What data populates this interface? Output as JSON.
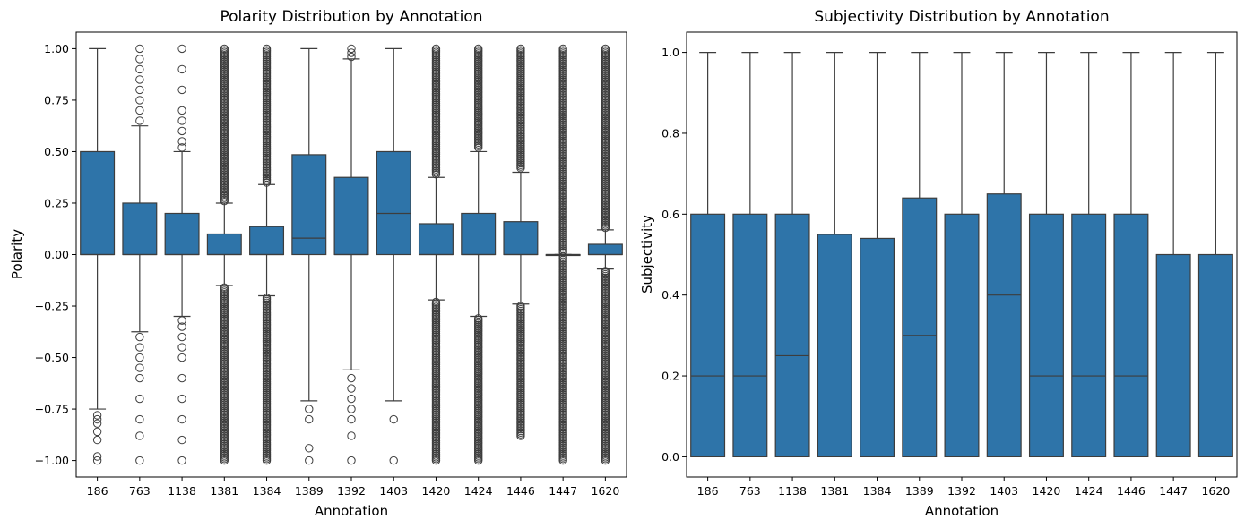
{
  "chart_data": [
    {
      "type": "box",
      "title": "Polarity Distribution by Annotation",
      "xlabel": "Annotation",
      "ylabel": "Polarity",
      "ylim": [
        -1.08,
        1.08
      ],
      "yticks": [
        -1.0,
        -0.75,
        -0.5,
        -0.25,
        0.0,
        0.25,
        0.5,
        0.75,
        1.0
      ],
      "ytick_labels": [
        "−1.00",
        "−0.75",
        "−0.50",
        "−0.25",
        "0.00",
        "0.25",
        "0.50",
        "0.75",
        "1.00"
      ],
      "box_color": "#2e74a9",
      "categories": [
        "186",
        "763",
        "1138",
        "1381",
        "1384",
        "1389",
        "1392",
        "1403",
        "1420",
        "1424",
        "1446",
        "1447",
        "1620"
      ],
      "boxes": [
        {
          "whisker_low": -0.75,
          "q1": 0.0,
          "median": 0.0,
          "q3": 0.5,
          "whisker_high": 1.0,
          "outliers": [
            -0.78,
            -0.8,
            -0.82,
            -0.86,
            -0.9,
            -0.98,
            -1.0
          ]
        },
        {
          "whisker_low": -0.375,
          "q1": 0.0,
          "median": 0.0,
          "q3": 0.25,
          "whisker_high": 0.625,
          "outliers": [
            -0.4,
            -0.45,
            -0.5,
            -0.55,
            -0.6,
            -0.7,
            -0.8,
            -0.88,
            -1.0,
            0.65,
            0.7,
            0.75,
            0.8,
            0.85,
            0.9,
            0.95,
            1.0
          ]
        },
        {
          "whisker_low": -0.3,
          "q1": 0.0,
          "median": 0.0,
          "q3": 0.2,
          "whisker_high": 0.5,
          "outliers": [
            -0.32,
            -0.35,
            -0.4,
            -0.45,
            -0.5,
            -0.6,
            -0.7,
            -0.8,
            -0.9,
            -1.0,
            0.52,
            0.55,
            0.6,
            0.65,
            0.7,
            0.8,
            0.9,
            1.0
          ]
        },
        {
          "whisker_low": -0.15,
          "q1": 0.0,
          "median": 0.0,
          "q3": 0.1,
          "whisker_high": 0.25,
          "outliers_dense": [
            [
              -1.0,
              -0.16
            ],
            [
              0.26,
              1.0
            ]
          ]
        },
        {
          "whisker_low": -0.2,
          "q1": 0.0,
          "median": 0.0,
          "q3": 0.136,
          "whisker_high": 0.34,
          "outliers_dense": [
            [
              -1.0,
              -0.21
            ],
            [
              0.35,
              1.0
            ]
          ]
        },
        {
          "whisker_low": -0.71,
          "q1": 0.0,
          "median": 0.08,
          "q3": 0.485,
          "whisker_high": 1.0,
          "outliers": [
            -0.75,
            -0.8,
            -0.94,
            -1.0
          ]
        },
        {
          "whisker_low": -0.56,
          "q1": 0.0,
          "median": 0.0,
          "q3": 0.375,
          "whisker_high": 0.95,
          "outliers": [
            -0.6,
            -0.65,
            -0.7,
            -0.75,
            -0.8,
            -0.88,
            -1.0,
            0.96,
            0.98,
            1.0
          ]
        },
        {
          "whisker_low": -0.71,
          "q1": 0.0,
          "median": 0.2,
          "q3": 0.5,
          "whisker_high": 1.0,
          "outliers": [
            -0.8,
            -1.0
          ]
        },
        {
          "whisker_low": -0.22,
          "q1": 0.0,
          "median": 0.0,
          "q3": 0.15,
          "whisker_high": 0.375,
          "outliers_dense": [
            [
              -1.0,
              -0.23
            ],
            [
              0.39,
              1.0
            ]
          ]
        },
        {
          "whisker_low": -0.3,
          "q1": 0.0,
          "median": 0.0,
          "q3": 0.2,
          "whisker_high": 0.5,
          "outliers_dense": [
            [
              -1.0,
              -0.31
            ],
            [
              0.52,
              1.0
            ]
          ]
        },
        {
          "whisker_low": -0.24,
          "q1": 0.0,
          "median": 0.0,
          "q3": 0.16,
          "whisker_high": 0.4,
          "outliers_dense": [
            [
              -0.88,
              -0.25
            ],
            [
              0.42,
              1.0
            ]
          ]
        },
        {
          "whisker_low": 0.0,
          "q1": 0.0,
          "median": 0.0,
          "q3": 0.0,
          "whisker_high": 0.0,
          "outliers_dense": [
            [
              -1.0,
              -0.01
            ],
            [
              0.01,
              1.0
            ]
          ]
        },
        {
          "whisker_low": -0.07,
          "q1": 0.0,
          "median": 0.0,
          "q3": 0.05,
          "whisker_high": 0.12,
          "outliers_dense": [
            [
              -1.0,
              -0.08
            ],
            [
              0.13,
              1.0
            ]
          ]
        }
      ]
    },
    {
      "type": "box",
      "title": "Subjectivity Distribution by Annotation",
      "xlabel": "Annotation",
      "ylabel": "Subjectivity",
      "ylim": [
        -0.05,
        1.05
      ],
      "yticks": [
        0.0,
        0.2,
        0.4,
        0.6,
        0.8,
        1.0
      ],
      "ytick_labels": [
        "0.0",
        "0.2",
        "0.4",
        "0.6",
        "0.8",
        "1.0"
      ],
      "box_color": "#2e74a9",
      "categories": [
        "186",
        "763",
        "1138",
        "1381",
        "1384",
        "1389",
        "1392",
        "1403",
        "1420",
        "1424",
        "1446",
        "1447",
        "1620"
      ],
      "boxes": [
        {
          "whisker_low": 0.0,
          "q1": 0.0,
          "median": 0.2,
          "q3": 0.6,
          "whisker_high": 1.0
        },
        {
          "whisker_low": 0.0,
          "q1": 0.0,
          "median": 0.2,
          "q3": 0.6,
          "whisker_high": 1.0
        },
        {
          "whisker_low": 0.0,
          "q1": 0.0,
          "median": 0.25,
          "q3": 0.6,
          "whisker_high": 1.0
        },
        {
          "whisker_low": 0.0,
          "q1": 0.0,
          "median": 0.0,
          "q3": 0.55,
          "whisker_high": 1.0
        },
        {
          "whisker_low": 0.0,
          "q1": 0.0,
          "median": 0.0,
          "q3": 0.54,
          "whisker_high": 1.0
        },
        {
          "whisker_low": 0.0,
          "q1": 0.0,
          "median": 0.3,
          "q3": 0.64,
          "whisker_high": 1.0
        },
        {
          "whisker_low": 0.0,
          "q1": 0.0,
          "median": 0.0,
          "q3": 0.6,
          "whisker_high": 1.0
        },
        {
          "whisker_low": 0.0,
          "q1": 0.0,
          "median": 0.4,
          "q3": 0.65,
          "whisker_high": 1.0
        },
        {
          "whisker_low": 0.0,
          "q1": 0.0,
          "median": 0.2,
          "q3": 0.6,
          "whisker_high": 1.0
        },
        {
          "whisker_low": 0.0,
          "q1": 0.0,
          "median": 0.2,
          "q3": 0.6,
          "whisker_high": 1.0
        },
        {
          "whisker_low": 0.0,
          "q1": 0.0,
          "median": 0.2,
          "q3": 0.6,
          "whisker_high": 1.0
        },
        {
          "whisker_low": 0.0,
          "q1": 0.0,
          "median": 0.0,
          "q3": 0.5,
          "whisker_high": 1.0
        },
        {
          "whisker_low": 0.0,
          "q1": 0.0,
          "median": 0.0,
          "q3": 0.5,
          "whisker_high": 1.0
        }
      ]
    }
  ]
}
